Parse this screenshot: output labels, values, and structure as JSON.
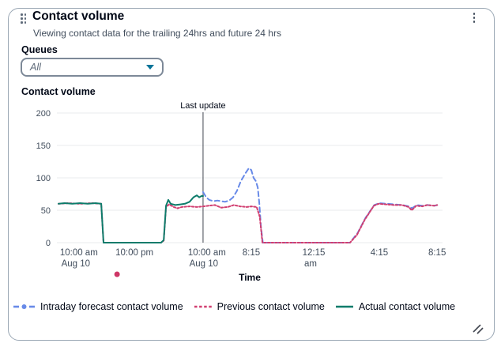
{
  "card": {
    "title": "Contact volume",
    "subtitle": "Viewing contact data for the trailing 24hrs and future 24 hrs"
  },
  "queues": {
    "label": "Queues",
    "selected_value": "All"
  },
  "chart_section_label": "Contact volume",
  "chart_data": {
    "type": "line",
    "title": "Contact volume",
    "xlabel": "Time",
    "ylabel": "",
    "ylim": [
      0,
      200
    ],
    "y_ticks": [
      0,
      50,
      100,
      150,
      200
    ],
    "grid": "horizontal",
    "legend_position": "bottom",
    "x_ticks": [
      {
        "pos": 0.057,
        "lines": [
          "10:00 am",
          "Aug 10"
        ]
      },
      {
        "pos": 0.201,
        "lines": [
          "10:00 pm"
        ]
      },
      {
        "pos": 0.389,
        "lines": [
          "10:00 am",
          "Aug 10"
        ]
      },
      {
        "pos": 0.504,
        "lines": [
          "8:15"
        ]
      },
      {
        "pos": 0.666,
        "lines": [
          "12:15",
          "am"
        ]
      },
      {
        "pos": 0.836,
        "lines": [
          "4:15"
        ]
      },
      {
        "pos": 0.986,
        "lines": [
          "8:15"
        ]
      }
    ],
    "annotation": {
      "label": "Last update",
      "pos": 0.379
    },
    "outlier_dot": {
      "pos": 0.156,
      "color": "#ce3666"
    },
    "colors": {
      "grid": "#e9ebed",
      "axis_text": "#414d5c",
      "annotation_line": "#424650"
    },
    "series": [
      {
        "name": "Intraday forecast contact volume",
        "color": "#688ae8",
        "style": "dashed",
        "points": [
          [
            0.379,
            78
          ],
          [
            0.387,
            70
          ],
          [
            0.395,
            66
          ],
          [
            0.406,
            64
          ],
          [
            0.416,
            65
          ],
          [
            0.426,
            64
          ],
          [
            0.436,
            63
          ],
          [
            0.447,
            65
          ],
          [
            0.457,
            70
          ],
          [
            0.467,
            80
          ],
          [
            0.477,
            95
          ],
          [
            0.49,
            108
          ],
          [
            0.498,
            115
          ],
          [
            0.504,
            112
          ],
          [
            0.51,
            100
          ],
          [
            0.516,
            95
          ],
          [
            0.521,
            85
          ],
          [
            0.525,
            60
          ],
          [
            0.529,
            25
          ],
          [
            0.534,
            0
          ],
          [
            0.65,
            0
          ],
          [
            0.76,
            0
          ],
          [
            0.78,
            15
          ],
          [
            0.8,
            38
          ],
          [
            0.823,
            58
          ],
          [
            0.836,
            61
          ],
          [
            0.856,
            60
          ],
          [
            0.876,
            59
          ],
          [
            0.896,
            58
          ],
          [
            0.913,
            56
          ],
          [
            0.921,
            53
          ],
          [
            0.933,
            58
          ],
          [
            0.948,
            57
          ],
          [
            0.961,
            58
          ],
          [
            0.979,
            57
          ],
          [
            0.986,
            58
          ]
        ]
      },
      {
        "name": "Previous contact volume",
        "color": "#d13e70",
        "style": "dotted",
        "points": [
          [
            0.004,
            60
          ],
          [
            0.03,
            61
          ],
          [
            0.06,
            60
          ],
          [
            0.09,
            61
          ],
          [
            0.115,
            60
          ],
          [
            0.121,
            0
          ],
          [
            0.27,
            0
          ],
          [
            0.277,
            3
          ],
          [
            0.283,
            55
          ],
          [
            0.291,
            59
          ],
          [
            0.303,
            55
          ],
          [
            0.313,
            53
          ],
          [
            0.324,
            55
          ],
          [
            0.344,
            56
          ],
          [
            0.363,
            55
          ],
          [
            0.379,
            56
          ],
          [
            0.393,
            57
          ],
          [
            0.41,
            58
          ],
          [
            0.426,
            54
          ],
          [
            0.443,
            55
          ],
          [
            0.459,
            58
          ],
          [
            0.475,
            56
          ],
          [
            0.492,
            55
          ],
          [
            0.504,
            56
          ],
          [
            0.518,
            55
          ],
          [
            0.526,
            40
          ],
          [
            0.533,
            0
          ],
          [
            0.65,
            0
          ],
          [
            0.76,
            0
          ],
          [
            0.778,
            12
          ],
          [
            0.798,
            35
          ],
          [
            0.822,
            57
          ],
          [
            0.834,
            60
          ],
          [
            0.855,
            59
          ],
          [
            0.875,
            58
          ],
          [
            0.895,
            58
          ],
          [
            0.912,
            55
          ],
          [
            0.92,
            50
          ],
          [
            0.932,
            57
          ],
          [
            0.947,
            56
          ],
          [
            0.96,
            58
          ],
          [
            0.978,
            57
          ],
          [
            0.986,
            58
          ]
        ]
      },
      {
        "name": "Actual contact volume",
        "color": "#0e7c6b",
        "style": "solid",
        "points": [
          [
            0.004,
            60
          ],
          [
            0.02,
            61
          ],
          [
            0.04,
            60
          ],
          [
            0.06,
            61
          ],
          [
            0.08,
            60
          ],
          [
            0.1,
            61
          ],
          [
            0.115,
            60
          ],
          [
            0.121,
            0
          ],
          [
            0.27,
            0
          ],
          [
            0.277,
            4
          ],
          [
            0.283,
            57
          ],
          [
            0.289,
            66
          ],
          [
            0.295,
            60
          ],
          [
            0.307,
            58
          ],
          [
            0.32,
            59
          ],
          [
            0.332,
            60
          ],
          [
            0.344,
            63
          ],
          [
            0.354,
            70
          ],
          [
            0.363,
            73
          ],
          [
            0.369,
            70
          ],
          [
            0.375,
            72
          ],
          [
            0.379,
            72
          ]
        ]
      }
    ]
  }
}
